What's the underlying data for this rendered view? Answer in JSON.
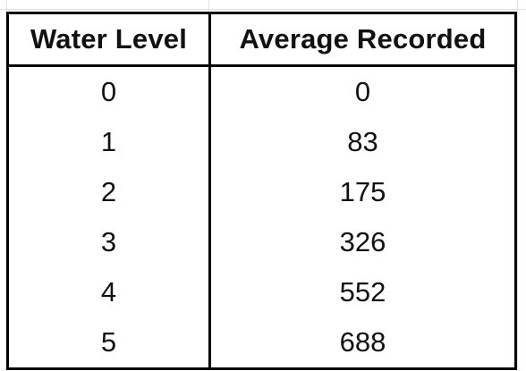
{
  "table": {
    "headers": [
      "Water Level",
      "Average Recorded"
    ],
    "rows": [
      [
        "0",
        "0"
      ],
      [
        "1",
        "83"
      ],
      [
        "2",
        "175"
      ],
      [
        "3",
        "326"
      ],
      [
        "4",
        "552"
      ],
      [
        "5",
        "688"
      ]
    ]
  }
}
